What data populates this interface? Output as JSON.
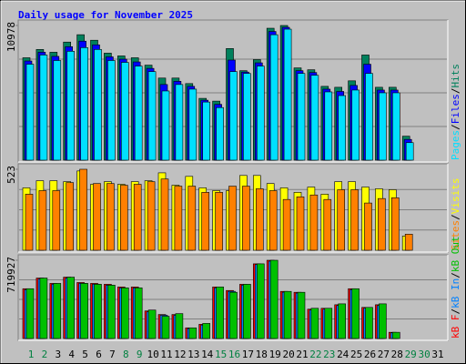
{
  "title": "Daily usage for November 2025",
  "legend_separator": "/",
  "chart_data": [
    {
      "type": "bar",
      "ylim": [
        0,
        10978
      ],
      "yticks": [
        10978
      ],
      "series": [
        {
          "name": "Pages",
          "color": "#00e0ff",
          "values": [
            7821,
            8573,
            8122,
            8874,
            9174,
            9024,
            8122,
            7971,
            7670,
            7219,
            5640,
            6166,
            5790,
            4738,
            4286,
            7219,
            7069,
            7670,
            10227,
            10678,
            7069,
            6918,
            5565,
            5264,
            5715,
            7069,
            5490,
            5490,
            1429,
            null,
            null
          ]
        },
        {
          "name": "Files",
          "color": "#0000ff",
          "values": [
            8084,
            8798,
            8460,
            9250,
            9700,
            9400,
            8422,
            8234,
            8008,
            7482,
            6166,
            6430,
            6016,
            4888,
            4550,
            8159,
            7181,
            7934,
            10490,
            10828,
            7294,
            7144,
            5790,
            5602,
            6091,
            7821,
            5715,
            5715,
            1692,
            null,
            null
          ]
        },
        {
          "name": "Hits",
          "color": "#00805c",
          "values": [
            8347,
            9024,
            8798,
            9626,
            10227,
            9776,
            8723,
            8498,
            8347,
            7746,
            6693,
            6693,
            6242,
            5038,
            4813,
            9099,
            7294,
            8197,
            10754,
            10978,
            7520,
            7370,
            6016,
            5941,
            6467,
            8573,
            5941,
            5941,
            1955,
            null,
            null
          ]
        }
      ]
    },
    {
      "type": "bar",
      "ylim": [
        0,
        523
      ],
      "yticks": [
        523
      ],
      "series": [
        {
          "name": "Sites",
          "color": "#ff8000",
          "values": [
            362,
            385,
            385,
            437,
            523,
            431,
            431,
            420,
            426,
            443,
            460,
            414,
            414,
            374,
            374,
            414,
            414,
            397,
            385,
            328,
            345,
            357,
            328,
            391,
            391,
            305,
            334,
            339,
            104,
            null,
            null
          ]
        },
        {
          "name": "Visits",
          "color": "#ffff00",
          "values": [
            403,
            449,
            449,
            443,
            512,
            426,
            443,
            426,
            443,
            449,
            500,
            420,
            477,
            403,
            385,
            385,
            483,
            483,
            431,
            403,
            374,
            408,
            362,
            443,
            443,
            408,
            397,
            391,
            92,
            null,
            null
          ]
        }
      ]
    },
    {
      "type": "bar",
      "ylim": [
        0,
        719927
      ],
      "yticks": [
        719927
      ],
      "categories": [
        "1",
        "2",
        "3",
        "4",
        "5",
        "6",
        "7",
        "8",
        "9",
        "10",
        "11",
        "12",
        "13",
        "14",
        "15",
        "16",
        "17",
        "18",
        "19",
        "20",
        "21",
        "22",
        "23",
        "24",
        "25",
        "26",
        "27",
        "28",
        "29",
        "30",
        "31"
      ],
      "weekends": [
        0,
        1,
        7,
        8,
        14,
        15,
        21,
        22,
        28,
        29
      ],
      "weekend_color": "#008040",
      "series": [
        {
          "name": "kB F",
          "color": "#ff0000",
          "values": [
            458136,
            556308,
            507222,
            564489,
            515403,
            507222,
            499041,
            474498,
            474498,
            253611,
            220887,
            220887,
            98172,
            130896,
            474498,
            441774,
            499041,
            687204,
            719927,
            433593,
            425412,
            269973,
            278154,
            310878,
            458136,
            286335,
            310878,
            57267,
            null,
            null,
            null
          ]
        },
        {
          "name": "kB In",
          "color": "#0080ff",
          "values": [
            450000,
            548000,
            500000,
            556000,
            508000,
            500000,
            491000,
            466000,
            466000,
            246000,
            214000,
            214000,
            92000,
            124000,
            466000,
            434000,
            491000,
            680000,
            712000,
            426000,
            418000,
            262000,
            270000,
            303000,
            450000,
            279000,
            303000,
            52000,
            null,
            null,
            null
          ]
        },
        {
          "name": "kB Out",
          "color": "#00c000",
          "values": [
            458136,
            556308,
            507222,
            564489,
            507222,
            499041,
            490860,
            466317,
            466317,
            261792,
            204525,
            229068,
            98172,
            139077,
            474498,
            425412,
            499041,
            687204,
            719927,
            433593,
            425412,
            278154,
            278154,
            319059,
            458136,
            286335,
            319059,
            57267,
            null,
            null,
            null
          ]
        }
      ]
    }
  ]
}
